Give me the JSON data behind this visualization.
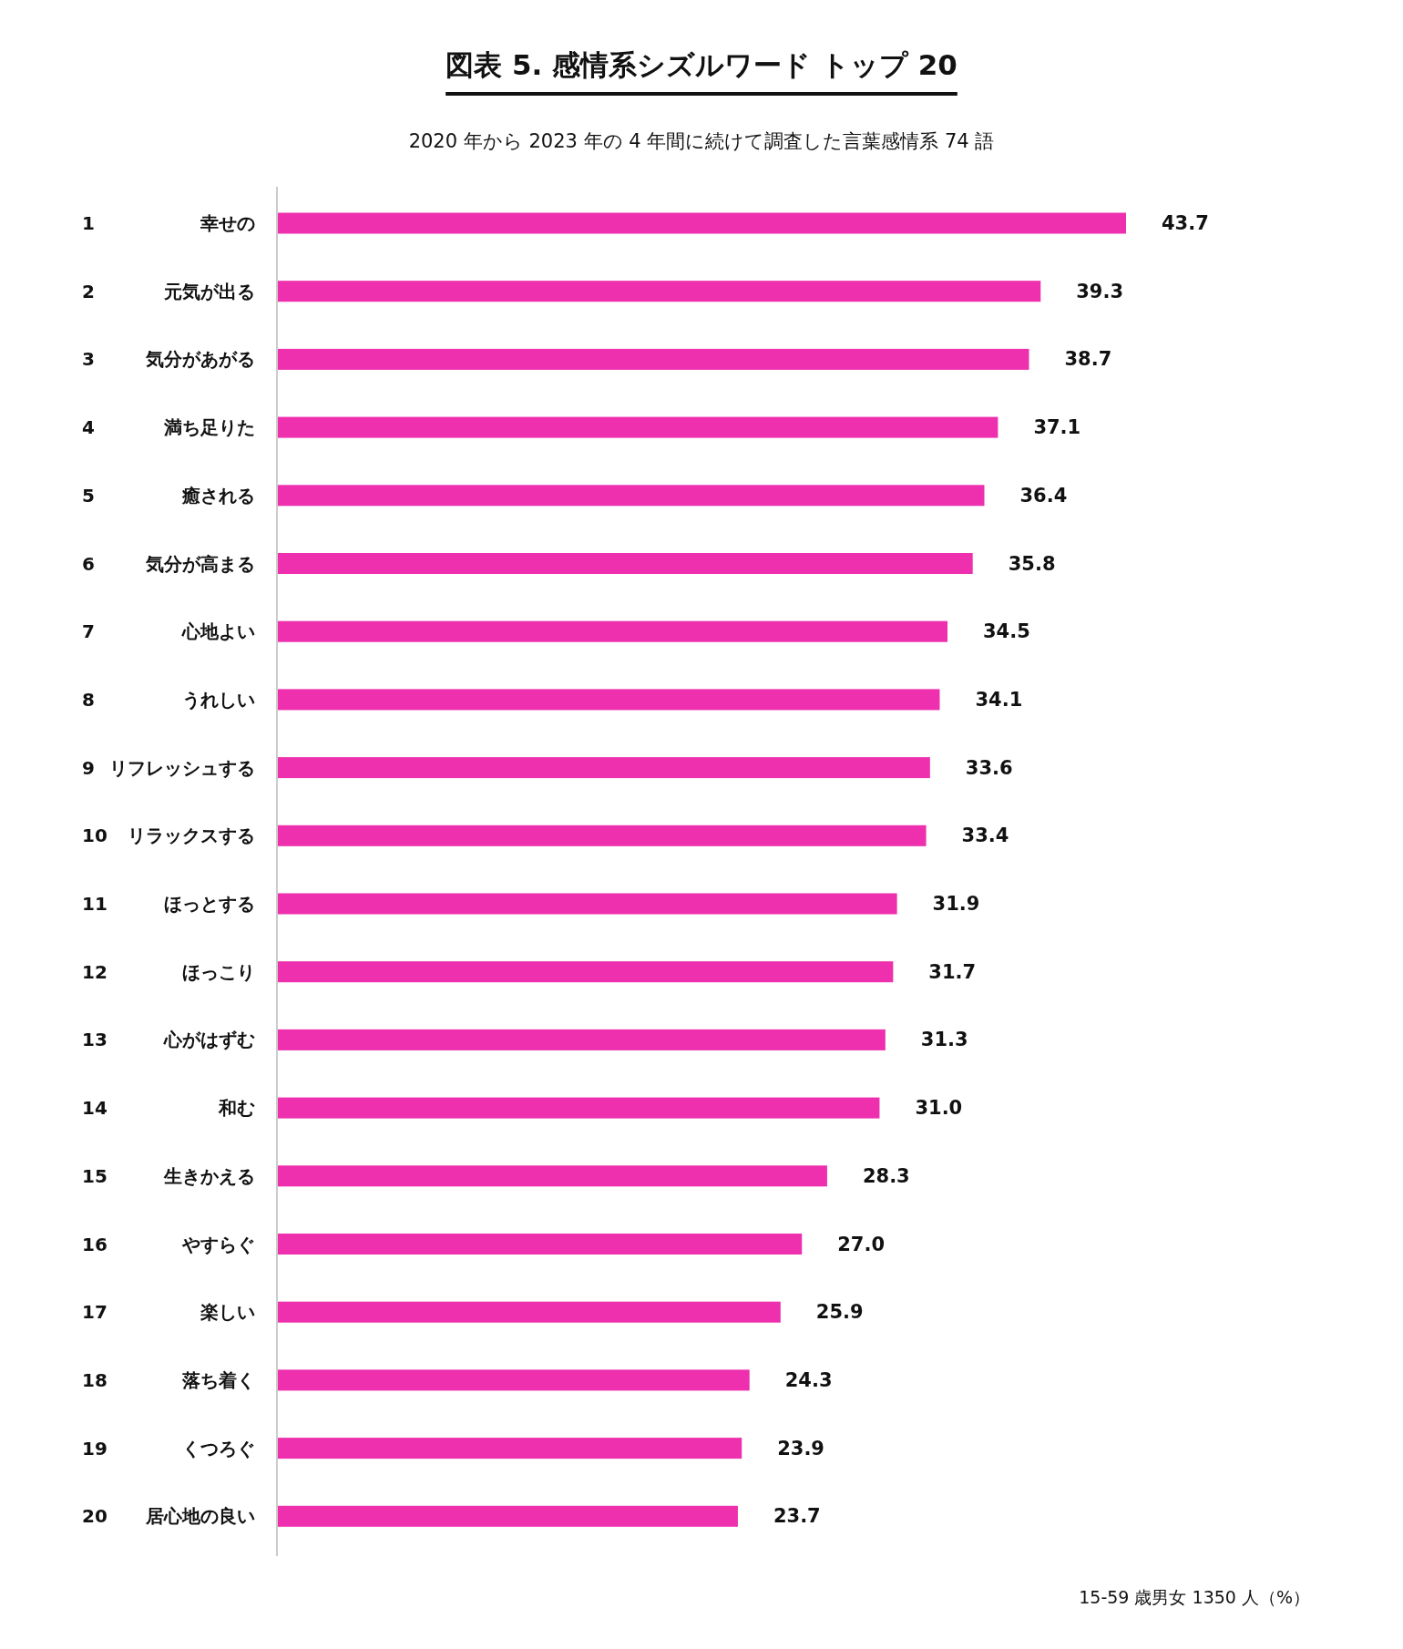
{
  "chart_data": {
    "type": "bar",
    "orientation": "horizontal",
    "title": "図表 5.  感情系シズルワード トップ 20",
    "subtitle": "2020 年から 2023 年の 4 年間に続けて調査した言葉感情系 74 語",
    "categories": [
      "1 幸せの",
      "2 元気が出る",
      "3 気分があがる",
      "4 満ち足りた",
      "5 癒される",
      "6 気分が高まる",
      "7 心地よい",
      "8 うれしい",
      "9 リフレッシュする",
      "10 リラックスする",
      "11 ほっとする",
      "12 ほっこり",
      "13 心がはずむ",
      "14 和む",
      "15 生きかえる",
      "16 やすらぐ",
      "17 楽しい",
      "18 落ち着く",
      "19 くつろぐ",
      "20 居心地の良い"
    ],
    "values": [
      43.7,
      39.3,
      38.7,
      37.1,
      36.4,
      35.8,
      34.5,
      34.1,
      33.6,
      33.4,
      31.9,
      31.7,
      31.3,
      31.0,
      28.3,
      27.0,
      25.9,
      24.3,
      23.9,
      23.7
    ],
    "value_labels": [
      "43.7",
      "39.3",
      "38.7",
      "37.1",
      "36.4",
      "35.8",
      "34.5",
      "34.1",
      "33.6",
      "33.4",
      "31.9",
      "31.7",
      "31.3",
      "31.0",
      "28.3",
      "27.0",
      "25.9",
      "24.3",
      "23.9",
      "23.7"
    ],
    "color": "#ee2fae",
    "annotations": [
      "15-59 歳男女 1350 人（%）"
    ]
  }
}
